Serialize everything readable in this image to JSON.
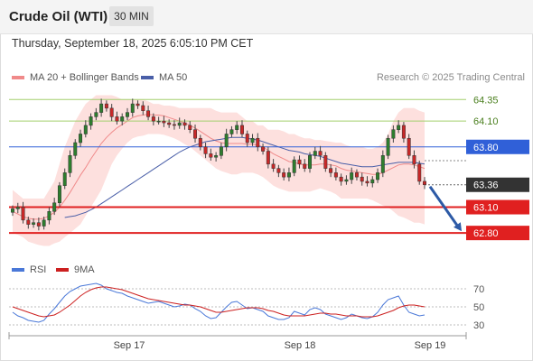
{
  "header": {
    "title": "Crude Oil (WTI)",
    "timeframe": "30 MIN"
  },
  "datetime": "Thursday, September 18, 2025 6:05:10 PM CET",
  "legend": {
    "bb_label": "MA 20 + Bollinger Bands",
    "ma50_label": "MA 50",
    "rsi_label": "RSI",
    "rsi_ma_label": "9MA"
  },
  "credit": "Research © 2025 Trading Central",
  "colors": {
    "bollinger": "#f08a8a",
    "band_fill": "#fde0de",
    "ma50": "#4a5fa8",
    "resistance": "#a3cf6e",
    "pivot": "#3060d8",
    "support": "#e02020",
    "current": "#333333",
    "arrow": "#2d5aa6",
    "rsi": "#4a78d8",
    "rsi_ma": "#cc2020"
  },
  "chart_data": [
    {
      "type": "candlestick",
      "title": "Crude Oil (WTI)",
      "timeframe": "30 MIN",
      "x_ticks": [
        "Sep 17",
        "Sep 18",
        "Sep 19"
      ],
      "ylim": [
        62.55,
        64.5
      ],
      "levels": [
        {
          "label": "64.35",
          "value": 64.35,
          "kind": "resistance"
        },
        {
          "label": "64.10",
          "value": 64.1,
          "kind": "resistance"
        },
        {
          "label": "63.80",
          "value": 63.8,
          "kind": "pivot"
        },
        {
          "label": "63.36",
          "value": 63.36,
          "kind": "current"
        },
        {
          "label": "63.10",
          "value": 63.1,
          "kind": "support"
        },
        {
          "label": "62.80",
          "value": 62.8,
          "kind": "support"
        }
      ],
      "close": [
        63.08,
        63.1,
        62.95,
        62.9,
        62.92,
        62.88,
        62.95,
        63.05,
        63.15,
        63.35,
        63.5,
        63.7,
        63.85,
        63.95,
        64.05,
        64.15,
        64.2,
        64.3,
        64.25,
        64.15,
        64.1,
        64.15,
        64.2,
        64.3,
        64.28,
        64.22,
        64.15,
        64.1,
        64.1,
        64.08,
        64.06,
        64.05,
        64.08,
        64.05,
        64.0,
        63.9,
        63.8,
        63.72,
        63.68,
        63.7,
        63.8,
        63.95,
        64.0,
        64.05,
        63.95,
        63.85,
        63.9,
        63.8,
        63.75,
        63.6,
        63.55,
        63.5,
        63.45,
        63.5,
        63.65,
        63.6,
        63.55,
        63.7,
        63.75,
        63.7,
        63.55,
        63.5,
        63.45,
        63.4,
        63.42,
        63.5,
        63.45,
        63.4,
        63.38,
        63.42,
        63.5,
        63.7,
        63.9,
        64.0,
        64.05,
        63.9,
        63.7,
        63.6,
        63.4,
        63.36
      ],
      "ma20": [
        63.05,
        63.02,
        62.99,
        62.97,
        62.96,
        62.96,
        62.97,
        63.0,
        63.04,
        63.1,
        63.18,
        63.27,
        63.37,
        63.47,
        63.56,
        63.66,
        63.75,
        63.84,
        63.91,
        63.97,
        64.02,
        64.06,
        64.1,
        64.14,
        64.16,
        64.17,
        64.18,
        64.17,
        64.17,
        64.16,
        64.14,
        64.12,
        64.1,
        64.08,
        64.05,
        64.02,
        63.98,
        63.94,
        63.9,
        63.87,
        63.85,
        63.84,
        63.84,
        63.84,
        63.84,
        63.83,
        63.83,
        63.82,
        63.8,
        63.76,
        63.72,
        63.69,
        63.66,
        63.63,
        63.62,
        63.6,
        63.59,
        63.59,
        63.59,
        63.6,
        63.6,
        63.59,
        63.58,
        63.55,
        63.53,
        63.52,
        63.51,
        63.5,
        63.49,
        63.48,
        63.48,
        63.5,
        63.53,
        63.56,
        63.59,
        63.6,
        63.6,
        63.59,
        63.57,
        63.55
      ],
      "bb_upper": [
        63.3,
        63.25,
        63.2,
        63.2,
        63.2,
        63.2,
        63.2,
        63.3,
        63.4,
        63.6,
        63.8,
        63.95,
        64.1,
        64.2,
        64.3,
        64.35,
        64.4,
        64.4,
        64.4,
        64.4,
        64.38,
        64.35,
        64.35,
        64.35,
        64.35,
        64.35,
        64.33,
        64.3,
        64.3,
        64.28,
        64.28,
        64.27,
        64.25,
        64.25,
        64.25,
        64.25,
        64.25,
        64.25,
        64.25,
        64.22,
        64.2,
        64.2,
        64.2,
        64.2,
        64.15,
        64.1,
        64.1,
        64.05,
        64.05,
        64.0,
        64.0,
        64.0,
        63.98,
        63.95,
        63.95,
        63.92,
        63.9,
        63.9,
        63.88,
        63.88,
        63.87,
        63.86,
        63.85,
        63.85,
        63.82,
        63.8,
        63.8,
        63.8,
        63.78,
        63.78,
        63.8,
        63.85,
        63.95,
        64.1,
        64.2,
        64.25,
        64.25,
        64.25,
        64.22,
        64.2
      ],
      "bb_lower": [
        62.8,
        62.78,
        62.75,
        62.7,
        62.68,
        62.66,
        62.65,
        62.65,
        62.68,
        62.7,
        62.75,
        62.8,
        62.85,
        62.9,
        63.0,
        63.1,
        63.2,
        63.3,
        63.45,
        63.6,
        63.7,
        63.78,
        63.85,
        63.9,
        63.92,
        63.93,
        63.95,
        63.95,
        63.95,
        63.94,
        63.92,
        63.9,
        63.87,
        63.83,
        63.8,
        63.75,
        63.7,
        63.65,
        63.6,
        63.55,
        63.52,
        63.5,
        63.48,
        63.48,
        63.5,
        63.5,
        63.5,
        63.48,
        63.45,
        63.4,
        63.35,
        63.32,
        63.3,
        63.28,
        63.28,
        63.28,
        63.28,
        63.28,
        63.3,
        63.32,
        63.3,
        63.28,
        63.25,
        63.2,
        63.2,
        63.2,
        63.2,
        63.2,
        63.2,
        63.18,
        63.15,
        63.12,
        63.1,
        63.05,
        63.0,
        62.98,
        62.95,
        62.92,
        62.92,
        62.9
      ],
      "ma50": [
        null,
        null,
        null,
        null,
        null,
        null,
        null,
        null,
        null,
        null,
        62.98,
        62.99,
        63.0,
        63.02,
        63.04,
        63.07,
        63.1,
        63.14,
        63.18,
        63.22,
        63.26,
        63.3,
        63.34,
        63.38,
        63.42,
        63.46,
        63.5,
        63.54,
        63.58,
        63.62,
        63.66,
        63.7,
        63.74,
        63.77,
        63.8,
        63.82,
        63.84,
        63.86,
        63.87,
        63.88,
        63.89,
        63.9,
        63.91,
        63.91,
        63.91,
        63.9,
        63.89,
        63.88,
        63.86,
        63.84,
        63.82,
        63.8,
        63.78,
        63.76,
        63.75,
        63.74,
        63.72,
        63.71,
        63.7,
        63.69,
        63.67,
        63.65,
        63.63,
        63.61,
        63.6,
        63.59,
        63.58,
        63.57,
        63.57,
        63.57,
        63.58,
        63.59,
        63.6,
        63.61,
        63.62,
        63.62,
        63.62,
        63.62,
        63.61,
        63.6
      ],
      "forecast": {
        "from": 63.36,
        "to": 62.8
      }
    },
    {
      "type": "line",
      "title": "RSI",
      "series": [
        {
          "name": "RSI",
          "values": [
            44,
            40,
            38,
            35,
            34,
            33,
            35,
            42,
            48,
            55,
            62,
            67,
            70,
            73,
            74,
            75,
            76,
            74,
            70,
            68,
            66,
            65,
            62,
            60,
            58,
            56,
            54,
            55,
            56,
            54,
            52,
            50,
            51,
            53,
            52,
            48,
            45,
            40,
            37,
            38,
            44,
            50,
            55,
            56,
            52,
            48,
            49,
            47,
            45,
            40,
            38,
            36,
            36,
            38,
            45,
            43,
            41,
            47,
            49,
            47,
            42,
            40,
            38,
            36,
            38,
            42,
            40,
            38,
            37,
            39,
            44,
            52,
            58,
            60,
            62,
            52,
            44,
            42,
            40,
            41
          ]
        },
        {
          "name": "9MA",
          "values": [
            50,
            48,
            46,
            44,
            42,
            40,
            39,
            40,
            41,
            44,
            48,
            52,
            57,
            62,
            66,
            69,
            71,
            72,
            72,
            71,
            70,
            69,
            67,
            65,
            63,
            61,
            59,
            58,
            57,
            56,
            55,
            54,
            53,
            52,
            52,
            51,
            50,
            48,
            46,
            44,
            44,
            45,
            46,
            47,
            48,
            49,
            49,
            49,
            48,
            46,
            45,
            43,
            41,
            40,
            40,
            40,
            40,
            41,
            42,
            43,
            43,
            42,
            42,
            41,
            40,
            40,
            40,
            39,
            39,
            39,
            40,
            42,
            44,
            46,
            49,
            51,
            52,
            52,
            51,
            50
          ]
        }
      ],
      "y_ticks": [
        "70",
        "50",
        "30"
      ],
      "ylim": [
        20,
        80
      ]
    }
  ]
}
